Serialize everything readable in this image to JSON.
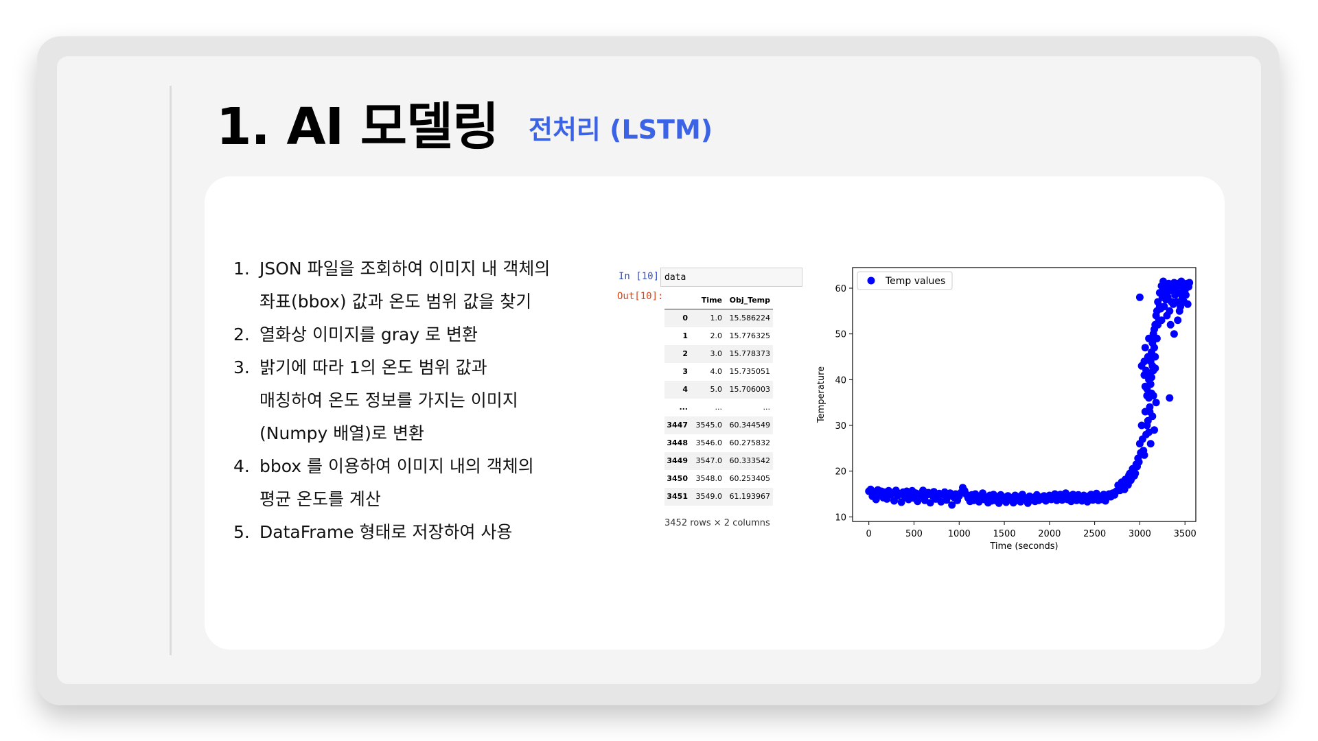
{
  "slide": {
    "title": "1. AI 모델링",
    "subtitle": "전처리 (LSTM)",
    "accent_color": "#3b63e6"
  },
  "steps": [
    {
      "num": "1.",
      "lines": [
        "JSON 파일을 조회하여 이미지 내 객체의",
        "좌표(bbox) 값과 온도 범위 값을 찾기"
      ]
    },
    {
      "num": "2.",
      "lines": [
        "열화상 이미지를 gray 로 변환"
      ]
    },
    {
      "num": "3.",
      "lines": [
        "밝기에 따라 1의 온도 범위 값과",
        "매칭하여 온도 정보를 가지는 이미지",
        "(Numpy 배열)로 변환"
      ]
    },
    {
      "num": "4.",
      "lines": [
        " bbox 를 이용하여 이미지 내의 객체의",
        "평균 온도를 계산"
      ]
    },
    {
      "num": "5.",
      "lines": [
        "DataFrame 형태로 저장하여 사용"
      ]
    }
  ],
  "notebook": {
    "in_prompt": "In [10]:",
    "out_prompt": "Out[10]:",
    "code": "data",
    "columns": [
      "Time",
      "Obj_Temp"
    ],
    "rows_head": [
      [
        "0",
        "1.0",
        "15.586224"
      ],
      [
        "1",
        "2.0",
        "15.776325"
      ],
      [
        "2",
        "3.0",
        "15.778373"
      ],
      [
        "3",
        "4.0",
        "15.735051"
      ],
      [
        "4",
        "5.0",
        "15.706003"
      ]
    ],
    "ellipsis": [
      "...",
      "...",
      "..."
    ],
    "rows_tail": [
      [
        "3447",
        "3545.0",
        "60.344549"
      ],
      [
        "3448",
        "3546.0",
        "60.275832"
      ],
      [
        "3449",
        "3547.0",
        "60.333542"
      ],
      [
        "3450",
        "3548.0",
        "60.253405"
      ],
      [
        "3451",
        "3549.0",
        "61.193967"
      ]
    ],
    "shape_text": "3452 rows × 2 columns"
  },
  "chart_data": {
    "type": "scatter",
    "xlabel": "Time (seconds)",
    "ylabel": "Temperature",
    "xlim": [
      -180,
      3620
    ],
    "ylim": [
      9,
      64.5
    ],
    "xticks": [
      0,
      500,
      1000,
      1500,
      2000,
      2500,
      3000,
      3500
    ],
    "yticks": [
      10,
      20,
      30,
      40,
      50,
      60
    ],
    "legend_position": "upper-left",
    "grid": false,
    "color": "#0000ff",
    "series": [
      {
        "name": "Temp values",
        "points": [
          [
            0,
            15.6
          ],
          [
            20,
            16.0
          ],
          [
            40,
            14.5
          ],
          [
            60,
            15.5
          ],
          [
            80,
            13.8
          ],
          [
            100,
            15.9
          ],
          [
            120,
            14.9
          ],
          [
            140,
            15.6
          ],
          [
            160,
            14.2
          ],
          [
            180,
            15.4
          ],
          [
            200,
            13.9
          ],
          [
            220,
            15.7
          ],
          [
            240,
            14.8
          ],
          [
            260,
            15.2
          ],
          [
            280,
            13.5
          ],
          [
            300,
            15.8
          ],
          [
            320,
            14.6
          ],
          [
            340,
            15.1
          ],
          [
            360,
            13.2
          ],
          [
            380,
            15.4
          ],
          [
            400,
            14.3
          ],
          [
            420,
            15.6
          ],
          [
            440,
            13.8
          ],
          [
            460,
            14.9
          ],
          [
            480,
            15.7
          ],
          [
            500,
            14.1
          ],
          [
            520,
            15.2
          ],
          [
            540,
            13.4
          ],
          [
            560,
            15.0
          ],
          [
            580,
            14.6
          ],
          [
            600,
            15.8
          ],
          [
            620,
            13.6
          ],
          [
            640,
            14.8
          ],
          [
            660,
            15.3
          ],
          [
            680,
            13.1
          ],
          [
            700,
            14.7
          ],
          [
            720,
            15.5
          ],
          [
            740,
            13.9
          ],
          [
            760,
            14.4
          ],
          [
            780,
            15.1
          ],
          [
            800,
            13.3
          ],
          [
            820,
            14.9
          ],
          [
            840,
            15.4
          ],
          [
            860,
            13.7
          ],
          [
            880,
            14.5
          ],
          [
            900,
            15.2
          ],
          [
            920,
            12.6
          ],
          [
            940,
            14.3
          ],
          [
            960,
            15.0
          ],
          [
            980,
            13.6
          ],
          [
            1000,
            14.6
          ],
          [
            1020,
            15.3
          ],
          [
            1040,
            16.4
          ],
          [
            1060,
            15.7
          ],
          [
            1080,
            14.9
          ],
          [
            1100,
            14.1
          ],
          [
            1120,
            13.4
          ],
          [
            1140,
            14.8
          ],
          [
            1160,
            13.6
          ],
          [
            1180,
            15.0
          ],
          [
            1200,
            14.2
          ],
          [
            1220,
            13.3
          ],
          [
            1240,
            14.6
          ],
          [
            1260,
            15.2
          ],
          [
            1280,
            13.8
          ],
          [
            1300,
            14.3
          ],
          [
            1320,
            13.1
          ],
          [
            1340,
            14.7
          ],
          [
            1360,
            13.5
          ],
          [
            1380,
            14.9
          ],
          [
            1400,
            13.6
          ],
          [
            1420,
            14.4
          ],
          [
            1440,
            13.0
          ],
          [
            1460,
            14.8
          ],
          [
            1480,
            13.7
          ],
          [
            1500,
            14.3
          ],
          [
            1520,
            13.2
          ],
          [
            1540,
            14.6
          ],
          [
            1560,
            13.9
          ],
          [
            1580,
            14.2
          ],
          [
            1600,
            13.1
          ],
          [
            1620,
            14.7
          ],
          [
            1640,
            13.6
          ],
          [
            1660,
            14.4
          ],
          [
            1680,
            13.3
          ],
          [
            1700,
            14.9
          ],
          [
            1720,
            13.8
          ],
          [
            1740,
            14.1
          ],
          [
            1760,
            13.0
          ],
          [
            1780,
            14.5
          ],
          [
            1800,
            13.7
          ],
          [
            1820,
            14.2
          ],
          [
            1840,
            13.4
          ],
          [
            1860,
            14.8
          ],
          [
            1880,
            13.6
          ],
          [
            1900,
            14.3
          ],
          [
            1920,
            13.9
          ],
          [
            1940,
            14.6
          ],
          [
            1960,
            13.5
          ],
          [
            1980,
            14.2
          ],
          [
            2000,
            14.7
          ],
          [
            2020,
            13.8
          ],
          [
            2040,
            14.4
          ],
          [
            2060,
            15.0
          ],
          [
            2080,
            13.6
          ],
          [
            2100,
            14.3
          ],
          [
            2120,
            14.9
          ],
          [
            2140,
            13.7
          ],
          [
            2160,
            14.5
          ],
          [
            2180,
            15.2
          ],
          [
            2200,
            13.8
          ],
          [
            2220,
            14.6
          ],
          [
            2240,
            13.4
          ],
          [
            2260,
            14.9
          ],
          [
            2280,
            14.1
          ],
          [
            2300,
            13.6
          ],
          [
            2320,
            14.8
          ],
          [
            2340,
            14.2
          ],
          [
            2360,
            13.5
          ],
          [
            2380,
            14.7
          ],
          [
            2400,
            14.0
          ],
          [
            2420,
            13.3
          ],
          [
            2440,
            14.6
          ],
          [
            2460,
            14.9
          ],
          [
            2480,
            13.7
          ],
          [
            2500,
            14.2
          ],
          [
            2520,
            15.1
          ],
          [
            2540,
            13.6
          ],
          [
            2560,
            14.4
          ],
          [
            2580,
            13.8
          ],
          [
            2600,
            14.9
          ],
          [
            2620,
            13.5
          ],
          [
            2640,
            14.3
          ],
          [
            2660,
            15.0
          ],
          [
            2680,
            14.4
          ],
          [
            2700,
            15.2
          ],
          [
            2720,
            14.8
          ],
          [
            2740,
            15.6
          ],
          [
            2760,
            16.9
          ],
          [
            2780,
            15.8
          ],
          [
            2800,
            17.6
          ],
          [
            2820,
            16.4
          ],
          [
            2840,
            18.2
          ],
          [
            2860,
            17.0
          ],
          [
            2880,
            19.1
          ],
          [
            2900,
            18.0
          ],
          [
            2920,
            20.5
          ],
          [
            2940,
            19.0
          ],
          [
            2960,
            21.5
          ],
          [
            2980,
            22.8
          ],
          [
            3000,
            26.0
          ],
          [
            3020,
            30.0
          ],
          [
            3040,
            24.5
          ],
          [
            3060,
            33.0
          ],
          [
            3080,
            36.5
          ],
          [
            3100,
            40.0
          ],
          [
            3120,
            44.0
          ],
          [
            3140,
            48.0
          ],
          [
            3160,
            51.0
          ],
          [
            3180,
            54.0
          ],
          [
            3200,
            57.0
          ],
          [
            3220,
            59.0
          ],
          [
            3240,
            60.5
          ],
          [
            3260,
            61.5
          ],
          [
            3280,
            60.0
          ],
          [
            3300,
            58.5
          ],
          [
            3320,
            61.0
          ],
          [
            3340,
            59.5
          ],
          [
            3360,
            60.5
          ],
          [
            3380,
            61.2
          ],
          [
            3400,
            60.0
          ],
          [
            3420,
            61.0
          ],
          [
            3440,
            59.0
          ],
          [
            3460,
            61.5
          ],
          [
            3480,
            60.2
          ],
          [
            3500,
            59.6
          ],
          [
            3520,
            61.0
          ],
          [
            3540,
            60.3
          ],
          [
            3549,
            61.2
          ],
          [
            2830,
            16.0
          ],
          [
            2850,
            18.0
          ],
          [
            2870,
            17.0
          ],
          [
            2890,
            19.5
          ],
          [
            2910,
            18.5
          ],
          [
            2930,
            20.0
          ],
          [
            2950,
            19.5
          ],
          [
            2970,
            21.0
          ],
          [
            2990,
            22.0
          ],
          [
            3010,
            24.0
          ],
          [
            3030,
            27.0
          ],
          [
            3050,
            23.5
          ],
          [
            3070,
            28.0
          ],
          [
            3090,
            31.0
          ],
          [
            3110,
            34.0
          ],
          [
            3130,
            37.0
          ],
          [
            3150,
            42.0
          ],
          [
            3170,
            45.0
          ],
          [
            3190,
            49.0
          ],
          [
            3210,
            53.0
          ],
          [
            3230,
            55.5
          ],
          [
            3250,
            58.0
          ],
          [
            3270,
            56.0
          ],
          [
            3290,
            57.5
          ],
          [
            3310,
            58.0
          ],
          [
            3330,
            55.0
          ],
          [
            3350,
            57.0
          ],
          [
            3370,
            56.5
          ],
          [
            3390,
            58.5
          ],
          [
            3410,
            57.0
          ],
          [
            3430,
            59.0
          ],
          [
            3450,
            56.0
          ],
          [
            3470,
            58.0
          ],
          [
            3490,
            57.0
          ],
          [
            3510,
            58.5
          ],
          [
            3530,
            56.5
          ],
          [
            3050,
            44.0
          ],
          [
            3060,
            47.0
          ],
          [
            3070,
            42.0
          ],
          [
            3080,
            38.0
          ],
          [
            3090,
            45.0
          ],
          [
            3100,
            49.0
          ],
          [
            3110,
            41.0
          ],
          [
            3120,
            39.0
          ],
          [
            3130,
            46.0
          ],
          [
            3140,
            43.0
          ],
          [
            3150,
            50.0
          ],
          [
            3160,
            47.0
          ],
          [
            3170,
            52.0
          ],
          [
            3180,
            49.0
          ],
          [
            3190,
            55.0
          ],
          [
            3200,
            52.0
          ],
          [
            3220,
            56.0
          ],
          [
            3240,
            53.0
          ],
          [
            3260,
            59.0
          ],
          [
            3300,
            54.0
          ],
          [
            3340,
            52.0
          ],
          [
            3380,
            50.0
          ],
          [
            3420,
            53.0
          ],
          [
            3440,
            55.0
          ],
          [
            3080,
            30.0
          ],
          [
            3100,
            28.5
          ],
          [
            3120,
            26.0
          ],
          [
            3140,
            32.0
          ],
          [
            3160,
            29.0
          ],
          [
            3180,
            35.0
          ],
          [
            3050,
            41.0
          ],
          [
            3100,
            36.0
          ],
          [
            3000,
            58.0
          ],
          [
            3330,
            36.0
          ],
          [
            3020,
            43.0
          ],
          [
            3060,
            38.5
          ],
          [
            3110,
            33.0
          ],
          [
            3130,
            40.5
          ],
          [
            3150,
            36.5
          ],
          [
            3170,
            42.5
          ]
        ]
      }
    ]
  }
}
